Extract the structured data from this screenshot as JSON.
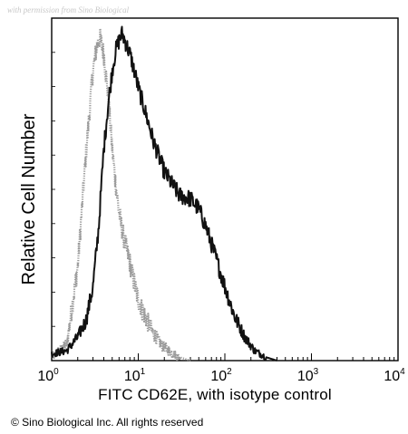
{
  "watermark": "with permission from Sino Biological",
  "copyright": "© Sino Biological Inc. All rights reserved",
  "chart_data": {
    "type": "line",
    "title": "",
    "xlabel": "FITC  CD62E,  with isotype control",
    "ylabel": "Relative Cell Number",
    "x_scale": "log",
    "xlim": [
      1,
      10000
    ],
    "ylim": [
      0,
      100
    ],
    "x_ticks": [
      {
        "base": "10",
        "exp": "0",
        "value": 1
      },
      {
        "base": "10",
        "exp": "1",
        "value": 10
      },
      {
        "base": "10",
        "exp": "2",
        "value": 100
      },
      {
        "base": "10",
        "exp": "3",
        "value": 1000
      },
      {
        "base": "10",
        "exp": "4",
        "value": 10000
      }
    ],
    "grid": false,
    "series": [
      {
        "color": "#9a9a9a",
        "style": "noisy-dotted",
        "x": [
          1,
          1.5,
          2,
          2.5,
          3,
          3.3,
          3.6,
          4,
          4.5,
          5,
          5.5,
          6,
          6.5,
          7,
          8,
          9,
          10,
          12,
          15,
          18,
          20,
          25,
          30,
          40
        ],
        "y": [
          1,
          5,
          28,
          62,
          86,
          93,
          96,
          91,
          78,
          63,
          52,
          44,
          39,
          35,
          29,
          23,
          18,
          13,
          8,
          5,
          4,
          2,
          1,
          0
        ]
      },
      {
        "color": "#111111",
        "style": "noisy-solid",
        "x": [
          1,
          1.5,
          2,
          2.5,
          3,
          3.5,
          4,
          4.5,
          5,
          5.5,
          6,
          6.5,
          7,
          8,
          9,
          10,
          12,
          15,
          20,
          25,
          30,
          40,
          50,
          60,
          80,
          100,
          130,
          170,
          220,
          300,
          400
        ],
        "y": [
          2,
          3,
          7,
          12,
          22,
          40,
          63,
          76,
          86,
          92,
          95,
          97,
          95,
          91,
          86,
          81,
          74,
          65,
          56,
          52,
          49,
          48,
          45,
          40,
          30,
          22,
          13,
          7,
          3,
          1,
          0
        ]
      }
    ]
  }
}
